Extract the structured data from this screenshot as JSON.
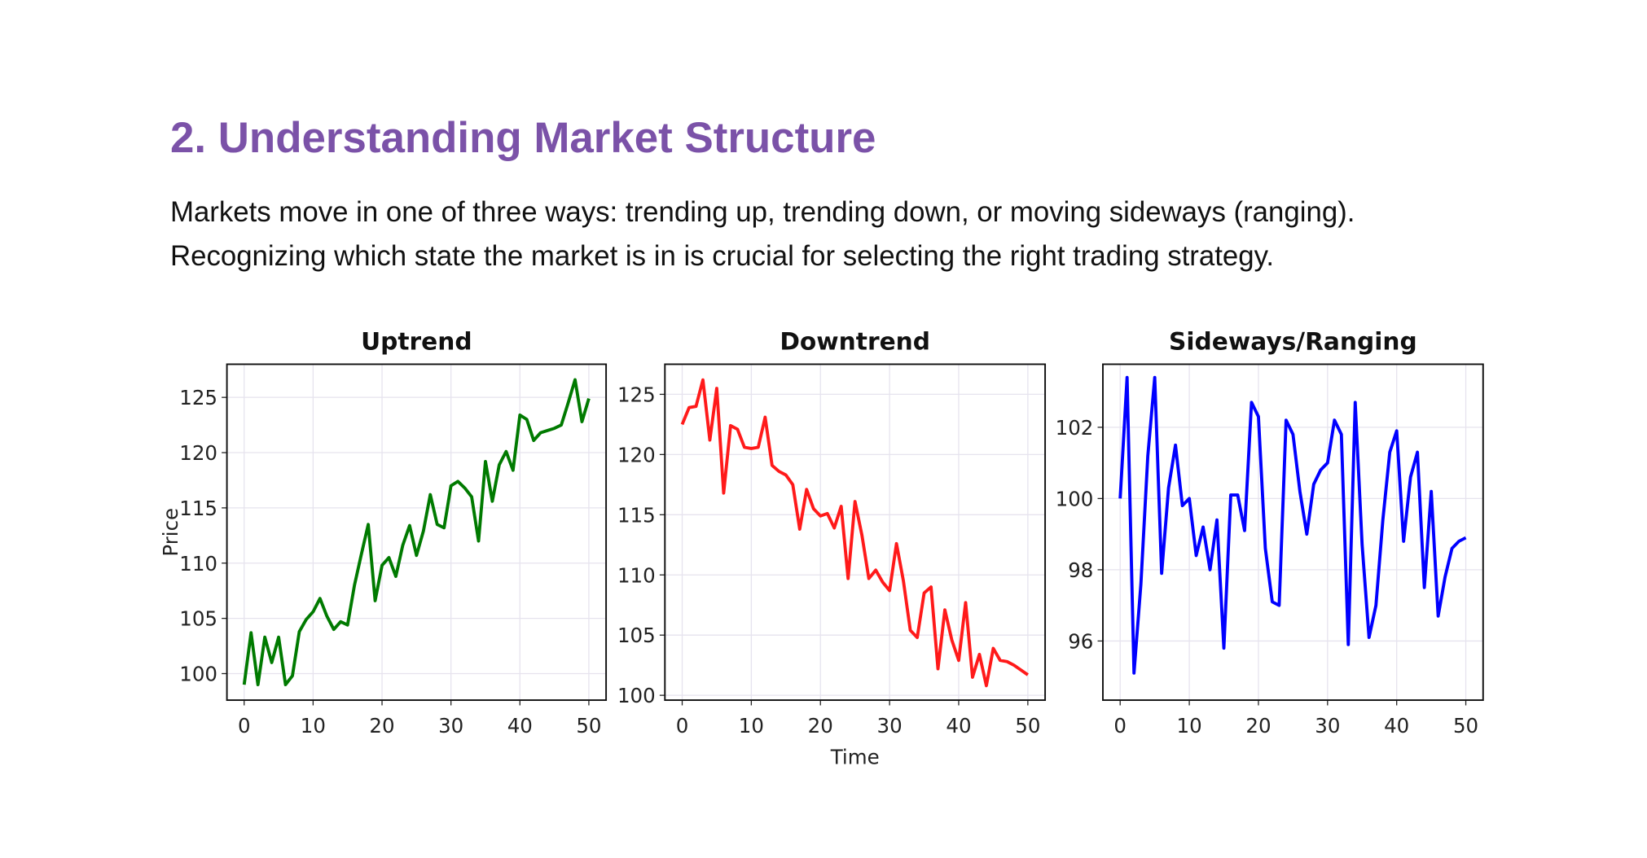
{
  "header": {
    "title": "2. Understanding Market Structure"
  },
  "paragraph": [
    "Markets move in one of three ways: trending up, trending down, or moving sideways (ranging).",
    "Recognizing which state the market is in is crucial for selecting the right trading strategy."
  ],
  "chart_data": [
    {
      "type": "line",
      "title": "Uptrend",
      "ylabel": "Price",
      "color": "#007a00",
      "grid": true,
      "x": [
        0,
        1,
        2,
        3,
        4,
        5,
        6,
        7,
        8,
        9,
        10,
        11,
        12,
        13,
        14,
        15,
        16,
        17,
        18,
        19,
        20,
        21,
        22,
        23,
        24,
        25,
        26,
        27,
        28,
        29,
        30,
        31,
        32,
        33,
        34,
        35,
        36,
        37,
        38,
        39,
        40,
        41,
        42,
        43,
        44,
        45,
        46,
        47,
        48,
        49,
        50
      ],
      "values": [
        99,
        103.7,
        99,
        103.3,
        101,
        103.3,
        99,
        99.8,
        103.8,
        104.9,
        105.6,
        106.8,
        105.2,
        104,
        104.7,
        104.4,
        108,
        110.8,
        113.5,
        106.6,
        109.8,
        110.5,
        108.8,
        111.6,
        113.4,
        110.7,
        112.9,
        116.2,
        113.5,
        113.2,
        117,
        117.4,
        116.8,
        116,
        112,
        119.2,
        115.6,
        118.9,
        120.1,
        118.4,
        123.4,
        123,
        121.1,
        121.8,
        122,
        122.2,
        122.5,
        124.5,
        126.6,
        122.8,
        124.9
      ],
      "xlim": [
        -2.5,
        52.5
      ],
      "xticks": [
        0,
        10,
        20,
        30,
        40,
        50
      ],
      "ylim": [
        97.6,
        128
      ],
      "yticks": [
        100,
        105,
        110,
        115,
        120,
        125
      ]
    },
    {
      "type": "line",
      "title": "Downtrend",
      "xlabel": "Time",
      "color": "#ff1a1a",
      "grid": true,
      "x": [
        0,
        1,
        2,
        3,
        4,
        5,
        6,
        7,
        8,
        9,
        10,
        11,
        12,
        13,
        14,
        15,
        16,
        17,
        18,
        19,
        20,
        21,
        22,
        23,
        24,
        25,
        26,
        27,
        28,
        29,
        30,
        31,
        32,
        33,
        34,
        35,
        36,
        37,
        38,
        39,
        40,
        41,
        42,
        43,
        44,
        45,
        46,
        47,
        48,
        49,
        50
      ],
      "values": [
        122.5,
        123.9,
        124,
        126.2,
        121.2,
        125.5,
        116.8,
        122.4,
        122.1,
        120.6,
        120.5,
        120.6,
        123.1,
        119.1,
        118.6,
        118.3,
        117.5,
        113.8,
        117.1,
        115.5,
        114.9,
        115.1,
        113.9,
        115.7,
        109.7,
        116.1,
        113.3,
        109.7,
        110.4,
        109.4,
        108.7,
        112.6,
        109.5,
        105.4,
        104.8,
        108.5,
        109,
        102.2,
        107.1,
        104.6,
        102.9,
        107.7,
        101.5,
        103.4,
        100.8,
        103.9,
        102.9,
        102.8,
        102.5,
        102.1,
        101.7
      ],
      "xlim": [
        -2.5,
        52.5
      ],
      "xticks": [
        0,
        10,
        20,
        30,
        40,
        50
      ],
      "ylim": [
        99.6,
        127.5
      ],
      "yticks": [
        100,
        105,
        110,
        115,
        120,
        125
      ]
    },
    {
      "type": "line",
      "title": "Sideways/Ranging",
      "color": "#0000ff",
      "grid": true,
      "x": [
        0,
        1,
        2,
        3,
        4,
        5,
        6,
        7,
        8,
        9,
        10,
        11,
        12,
        13,
        14,
        15,
        16,
        17,
        18,
        19,
        20,
        21,
        22,
        23,
        24,
        25,
        26,
        27,
        28,
        29,
        30,
        31,
        32,
        33,
        34,
        35,
        36,
        37,
        38,
        39,
        40,
        41,
        42,
        43,
        44,
        45,
        46,
        47,
        48,
        49,
        50
      ],
      "values": [
        100,
        103.4,
        95.1,
        97.6,
        101.2,
        103.4,
        97.9,
        100.3,
        101.5,
        99.8,
        100,
        98.4,
        99.2,
        98,
        99.4,
        95.8,
        100.1,
        100.1,
        99.1,
        102.7,
        102.3,
        98.6,
        97.1,
        97,
        102.2,
        101.8,
        100.2,
        99,
        100.4,
        100.8,
        101,
        102.2,
        101.8,
        95.9,
        102.7,
        98.7,
        96.1,
        97,
        99.4,
        101.3,
        101.9,
        98.8,
        100.6,
        101.3,
        97.5,
        100.2,
        96.7,
        97.8,
        98.6,
        98.8,
        98.9
      ],
      "xlim": [
        -2.5,
        52.5
      ],
      "xticks": [
        0,
        10,
        20,
        30,
        40,
        50
      ],
      "ylim": [
        94.34,
        103.77
      ],
      "yticks": [
        96,
        98,
        100,
        102
      ]
    }
  ]
}
